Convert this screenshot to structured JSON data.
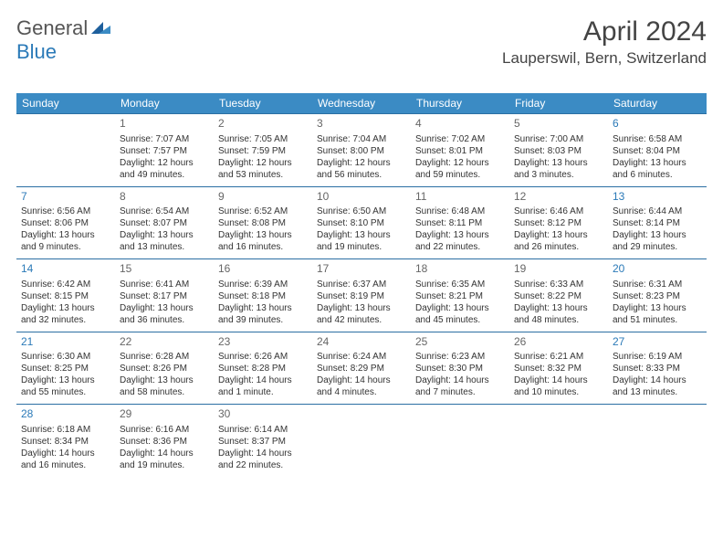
{
  "brand": {
    "part1": "General",
    "part2": "Blue"
  },
  "title": "April 2024",
  "location": "Lauperswil, Bern, Switzerland",
  "colors": {
    "header_bg": "#3b8bc4",
    "header_text": "#ffffff",
    "row_border": "#2b6fa3",
    "brand_accent": "#2b7ab8",
    "text": "#333333",
    "daynum": "#666666"
  },
  "weekdays": [
    "Sunday",
    "Monday",
    "Tuesday",
    "Wednesday",
    "Thursday",
    "Friday",
    "Saturday"
  ],
  "weekend_indices": [
    0,
    6
  ],
  "days": {
    "1": {
      "sunrise": "7:07 AM",
      "sunset": "7:57 PM",
      "daylight": "12 hours and 49 minutes."
    },
    "2": {
      "sunrise": "7:05 AM",
      "sunset": "7:59 PM",
      "daylight": "12 hours and 53 minutes."
    },
    "3": {
      "sunrise": "7:04 AM",
      "sunset": "8:00 PM",
      "daylight": "12 hours and 56 minutes."
    },
    "4": {
      "sunrise": "7:02 AM",
      "sunset": "8:01 PM",
      "daylight": "12 hours and 59 minutes."
    },
    "5": {
      "sunrise": "7:00 AM",
      "sunset": "8:03 PM",
      "daylight": "13 hours and 3 minutes."
    },
    "6": {
      "sunrise": "6:58 AM",
      "sunset": "8:04 PM",
      "daylight": "13 hours and 6 minutes."
    },
    "7": {
      "sunrise": "6:56 AM",
      "sunset": "8:06 PM",
      "daylight": "13 hours and 9 minutes."
    },
    "8": {
      "sunrise": "6:54 AM",
      "sunset": "8:07 PM",
      "daylight": "13 hours and 13 minutes."
    },
    "9": {
      "sunrise": "6:52 AM",
      "sunset": "8:08 PM",
      "daylight": "13 hours and 16 minutes."
    },
    "10": {
      "sunrise": "6:50 AM",
      "sunset": "8:10 PM",
      "daylight": "13 hours and 19 minutes."
    },
    "11": {
      "sunrise": "6:48 AM",
      "sunset": "8:11 PM",
      "daylight": "13 hours and 22 minutes."
    },
    "12": {
      "sunrise": "6:46 AM",
      "sunset": "8:12 PM",
      "daylight": "13 hours and 26 minutes."
    },
    "13": {
      "sunrise": "6:44 AM",
      "sunset": "8:14 PM",
      "daylight": "13 hours and 29 minutes."
    },
    "14": {
      "sunrise": "6:42 AM",
      "sunset": "8:15 PM",
      "daylight": "13 hours and 32 minutes."
    },
    "15": {
      "sunrise": "6:41 AM",
      "sunset": "8:17 PM",
      "daylight": "13 hours and 36 minutes."
    },
    "16": {
      "sunrise": "6:39 AM",
      "sunset": "8:18 PM",
      "daylight": "13 hours and 39 minutes."
    },
    "17": {
      "sunrise": "6:37 AM",
      "sunset": "8:19 PM",
      "daylight": "13 hours and 42 minutes."
    },
    "18": {
      "sunrise": "6:35 AM",
      "sunset": "8:21 PM",
      "daylight": "13 hours and 45 minutes."
    },
    "19": {
      "sunrise": "6:33 AM",
      "sunset": "8:22 PM",
      "daylight": "13 hours and 48 minutes."
    },
    "20": {
      "sunrise": "6:31 AM",
      "sunset": "8:23 PM",
      "daylight": "13 hours and 51 minutes."
    },
    "21": {
      "sunrise": "6:30 AM",
      "sunset": "8:25 PM",
      "daylight": "13 hours and 55 minutes."
    },
    "22": {
      "sunrise": "6:28 AM",
      "sunset": "8:26 PM",
      "daylight": "13 hours and 58 minutes."
    },
    "23": {
      "sunrise": "6:26 AM",
      "sunset": "8:28 PM",
      "daylight": "14 hours and 1 minute."
    },
    "24": {
      "sunrise": "6:24 AM",
      "sunset": "8:29 PM",
      "daylight": "14 hours and 4 minutes."
    },
    "25": {
      "sunrise": "6:23 AM",
      "sunset": "8:30 PM",
      "daylight": "14 hours and 7 minutes."
    },
    "26": {
      "sunrise": "6:21 AM",
      "sunset": "8:32 PM",
      "daylight": "14 hours and 10 minutes."
    },
    "27": {
      "sunrise": "6:19 AM",
      "sunset": "8:33 PM",
      "daylight": "14 hours and 13 minutes."
    },
    "28": {
      "sunrise": "6:18 AM",
      "sunset": "8:34 PM",
      "daylight": "14 hours and 16 minutes."
    },
    "29": {
      "sunrise": "6:16 AM",
      "sunset": "8:36 PM",
      "daylight": "14 hours and 19 minutes."
    },
    "30": {
      "sunrise": "6:14 AM",
      "sunset": "8:37 PM",
      "daylight": "14 hours and 22 minutes."
    }
  },
  "grid": [
    [
      null,
      1,
      2,
      3,
      4,
      5,
      6
    ],
    [
      7,
      8,
      9,
      10,
      11,
      12,
      13
    ],
    [
      14,
      15,
      16,
      17,
      18,
      19,
      20
    ],
    [
      21,
      22,
      23,
      24,
      25,
      26,
      27
    ],
    [
      28,
      29,
      30,
      null,
      null,
      null,
      null
    ]
  ],
  "labels": {
    "sunrise_prefix": "Sunrise: ",
    "sunset_prefix": "Sunset: ",
    "daylight_prefix": "Daylight: "
  }
}
